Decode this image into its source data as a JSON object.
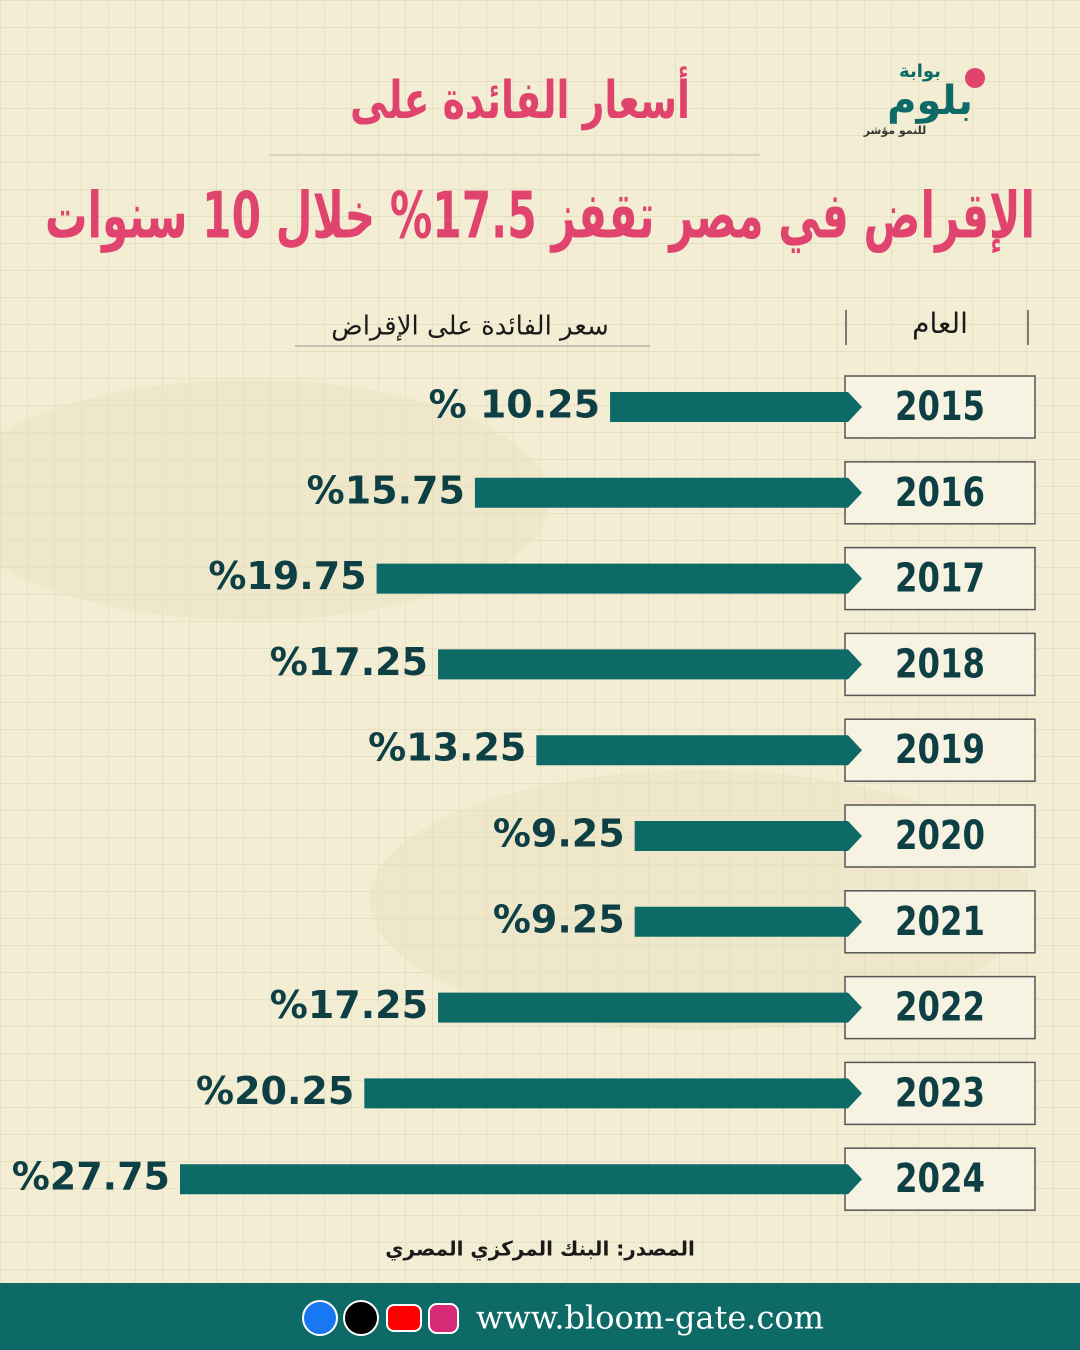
{
  "header": {
    "logo_top": "بوابة",
    "logo_main": "بلوم",
    "logo_sub": "للنمو مؤشر"
  },
  "chart_data": {
    "type": "bar",
    "title": "أسعار الفائدة على",
    "subtitle": "الإقراض في مصر تقفز 17.5% خلال 10 سنوات",
    "category_header": "العام",
    "value_header": "سعر الفائدة على الإقراض",
    "categories": [
      "2015",
      "2016",
      "2017",
      "2018",
      "2019",
      "2020",
      "2021",
      "2022",
      "2023",
      "2024"
    ],
    "values": [
      10.25,
      15.75,
      19.75,
      17.25,
      13.25,
      9.25,
      9.25,
      17.25,
      20.25,
      27.75
    ],
    "value_labels": [
      "% 10.25",
      "%15.75",
      "%19.75",
      "%17.25",
      "%13.25",
      "%9.25",
      "%9.25",
      "%17.25",
      "%20.25",
      "%27.75"
    ],
    "color": "#0e6a66",
    "source": "المصدر: البنك المركزي المصري"
  },
  "footer": {
    "website": "www.bloom-gate.com"
  }
}
